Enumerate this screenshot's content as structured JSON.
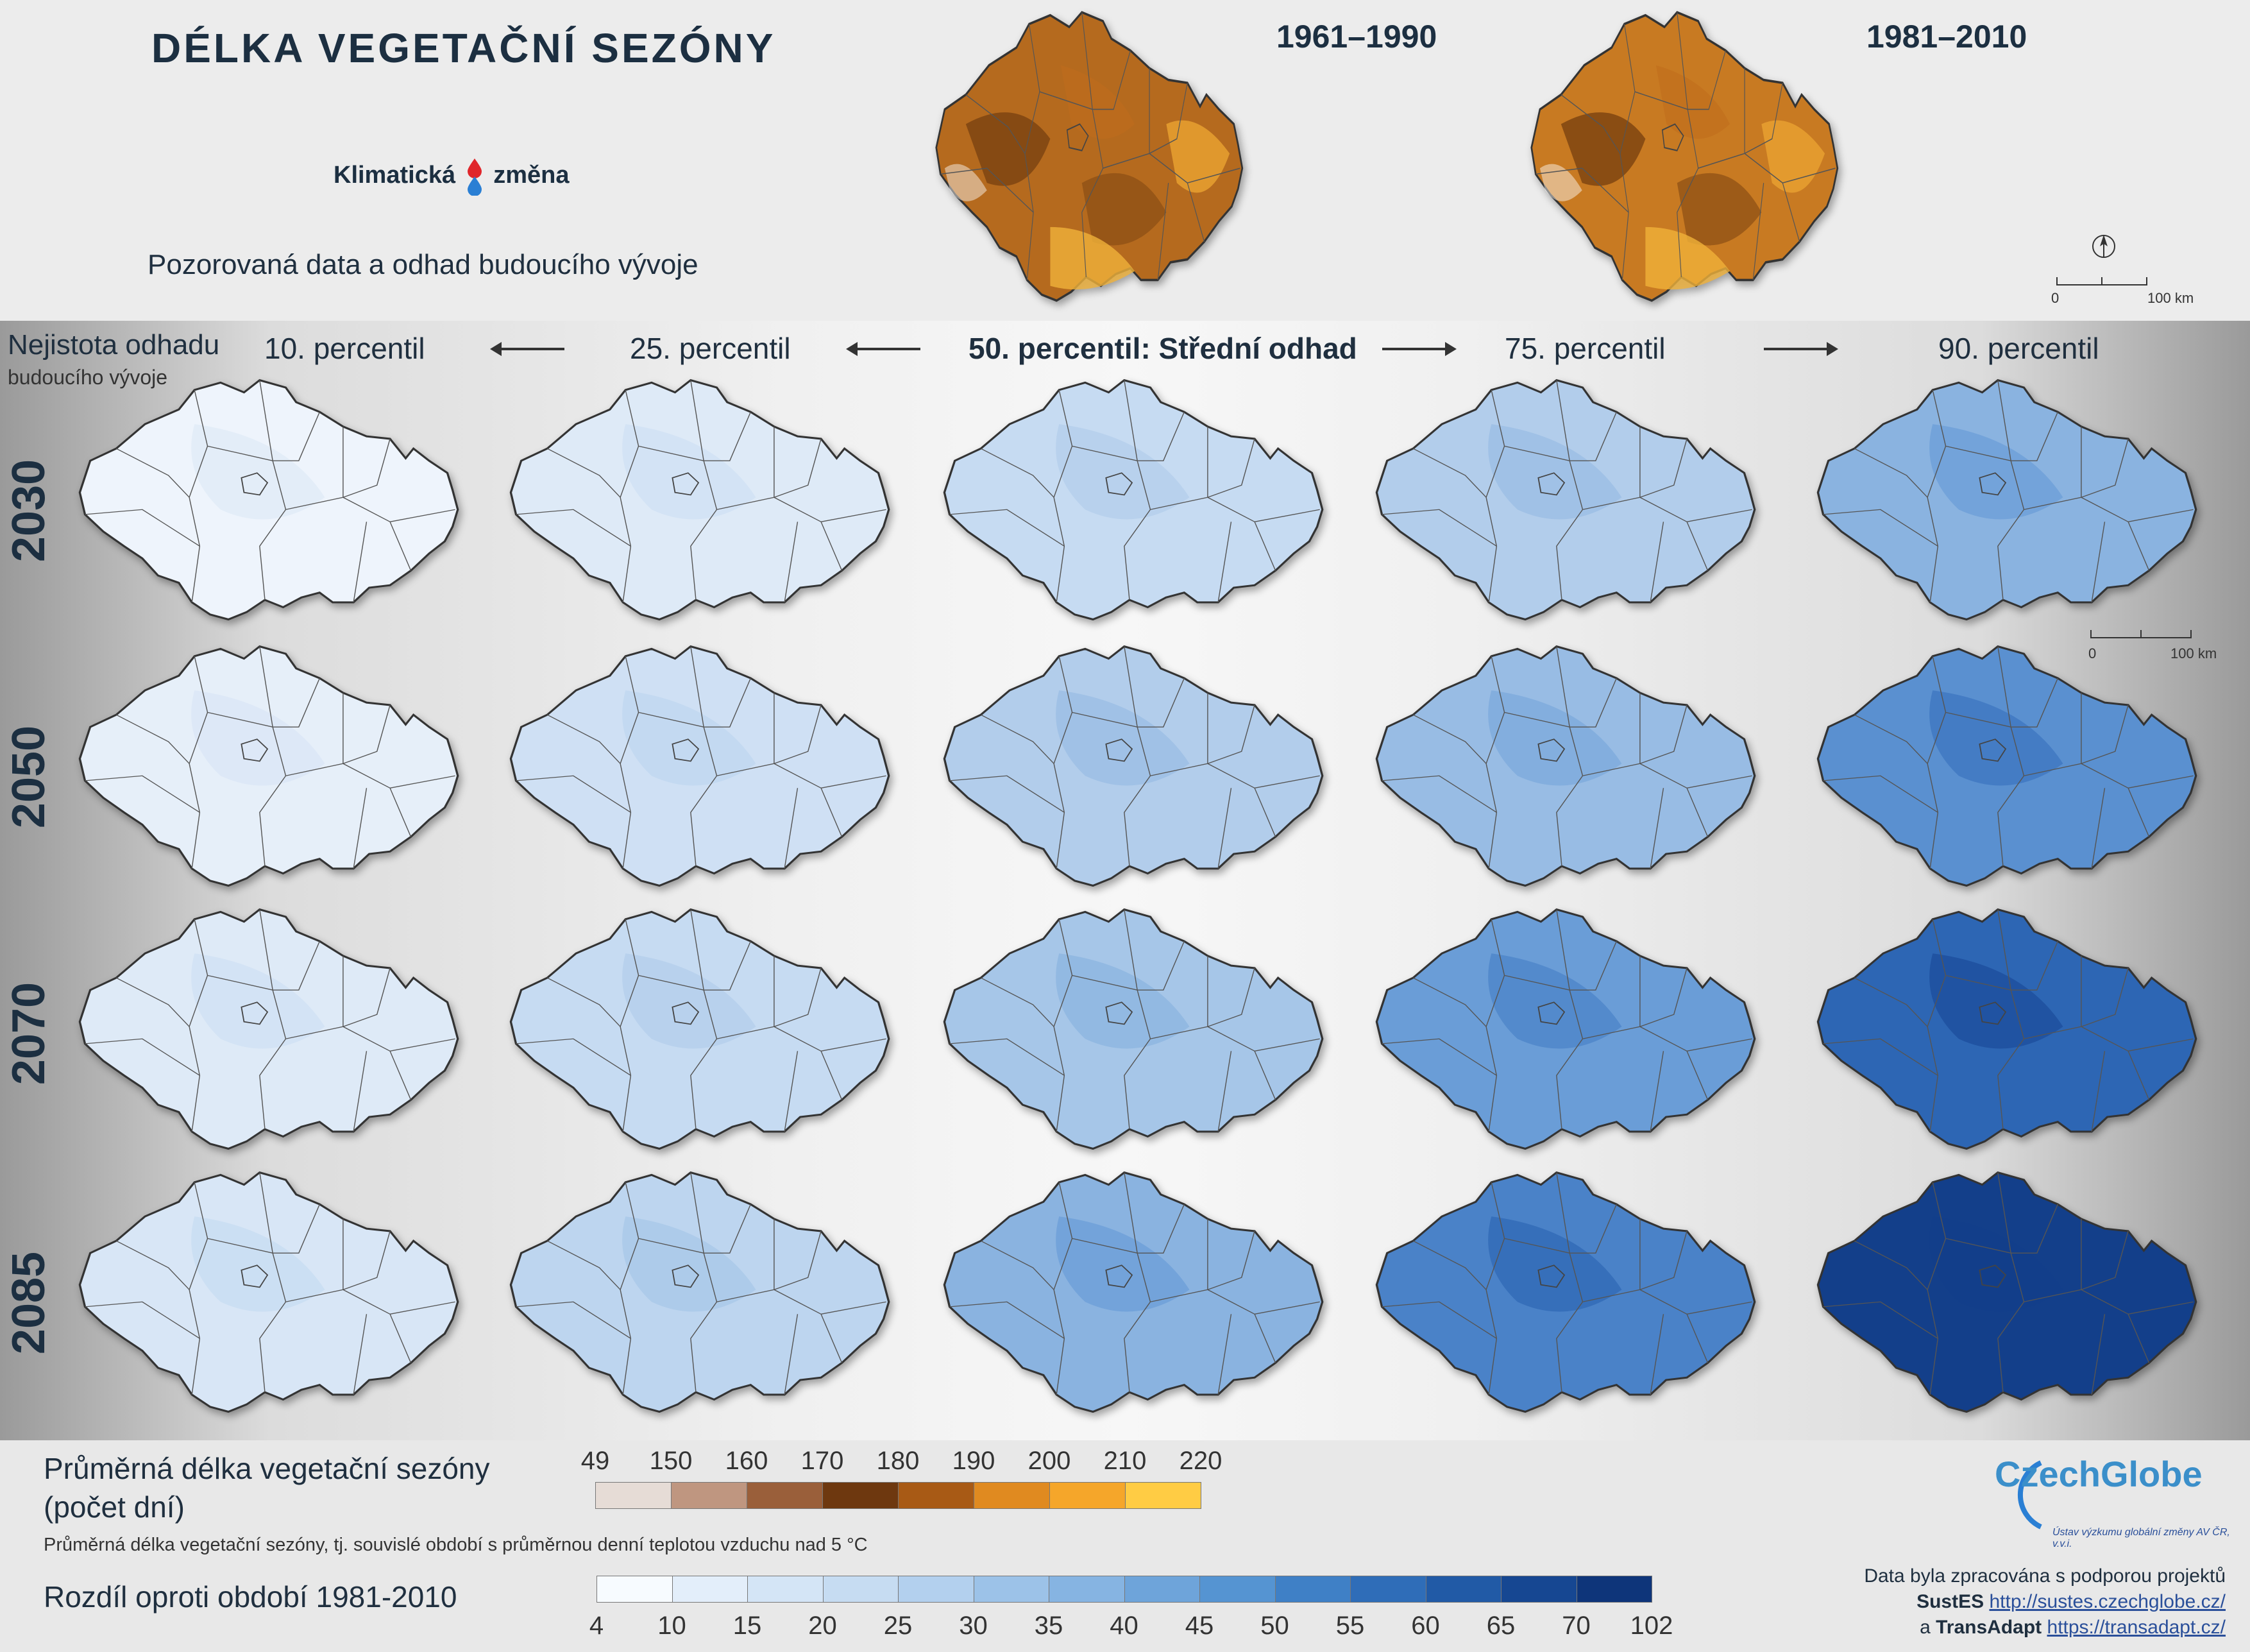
{
  "title": "DÉLKA VEGETAČNÍ SEZÓNY",
  "logo": {
    "left": "Klimatická",
    "right": "změna"
  },
  "subtitle": "Pozorovaná data a odhad budoucího vývoje",
  "observed_periods": [
    "1961–1990",
    "1981–2010"
  ],
  "scale_bar": {
    "start": "0",
    "end": "100 km"
  },
  "uncertainty_label": [
    "Nejistota odhadu",
    "budoucího vývoje"
  ],
  "percentiles": [
    "10. percentil",
    "25. percentil",
    "50. percentil: Střední odhad",
    "75. percentil",
    "90. percentil"
  ],
  "years": [
    "2030",
    "2050",
    "2070",
    "2085"
  ],
  "legend_length": {
    "title": [
      "Průměrná délka vegetační sezóny",
      "(počet dní)"
    ],
    "ticks": [
      "49",
      "150",
      "160",
      "170",
      "180",
      "190",
      "200",
      "210",
      "220"
    ],
    "colors": [
      "#e6dcd6",
      "#bf9680",
      "#9a5f3a",
      "#6e380f",
      "#a85a15",
      "#e08a20",
      "#f5a62a",
      "#ffcc44"
    ],
    "note": "Průměrná délka vegetační sezóny, tj. souvislé období s průměrnou denní teplotou vzduchu nad 5 °C"
  },
  "legend_diff": {
    "title": "Rozdíl oproti období 1981-2010",
    "ticks": [
      "4",
      "10",
      "15",
      "20",
      "25",
      "30",
      "35",
      "40",
      "45",
      "50",
      "55",
      "60",
      "65",
      "70",
      "102"
    ],
    "colors": [
      "#f7fbff",
      "#e3eefa",
      "#d4e5f6",
      "#c6dcf2",
      "#b3d0ee",
      "#9cc2e8",
      "#86b4e2",
      "#6ea4da",
      "#5594d2",
      "#3f80c6",
      "#2f6db8",
      "#215aa6",
      "#164792",
      "#0e357a"
    ]
  },
  "brand": {
    "name": "CzechGlobe",
    "sub": "Ústav výzkumu globální změny AV ČR, v.v.i."
  },
  "credits": {
    "line1": "Data byla zpracována s podporou projektů",
    "p1": "SustES",
    "u1": "http://sustes.czechglobe.cz/",
    "and": "a",
    "p2": "TransAdapt",
    "u2": "https://transadapt.cz/"
  },
  "colors": {
    "observed_1961": "#b56a1e",
    "observed_1981": "#c87a22",
    "diff_levels": [
      "#eef4fc",
      "#e6eff9",
      "#deeaf7",
      "#d8e6f6",
      "#cfe0f4",
      "#c6dbf2",
      "#bdd5ef",
      "#b2cdeb",
      "#a6c6e8",
      "#98bce4",
      "#8ab3e0",
      "#7aa8dc",
      "#6a9dd7",
      "#5a90d0",
      "#4a82c8",
      "#3b74bf",
      "#2d66b4",
      "#2459a8",
      "#1b4c9a",
      "#133f8a"
    ]
  },
  "map_levels": [
    [
      0,
      2,
      5,
      7,
      10
    ],
    [
      1,
      4,
      7,
      9,
      13
    ],
    [
      2,
      5,
      8,
      12,
      16
    ],
    [
      3,
      6,
      10,
      14,
      19
    ]
  ]
}
